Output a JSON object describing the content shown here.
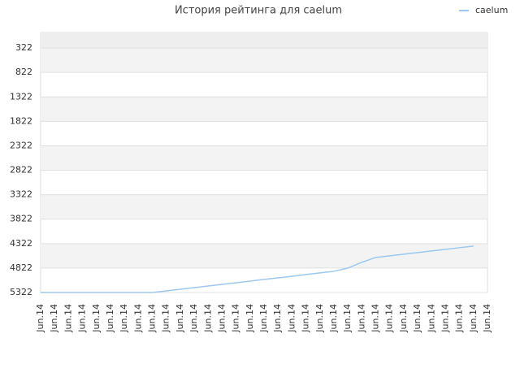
{
  "chart_data": {
    "type": "line",
    "title": "История рейтинга для caelum",
    "categories": [
      "Jun.14",
      "Jun.14",
      "Jun.14",
      "Jun.14",
      "Jun.14",
      "Jun.14",
      "Jun.14",
      "Jun.14",
      "Jun.14",
      "Jun.14",
      "Jun.14",
      "Jun.14",
      "Jun.14",
      "Jun.14",
      "Jun.14",
      "Jun.14",
      "Jun.14",
      "Jun.14",
      "Jun.14",
      "Jun.14",
      "Jun.14",
      "Jun.14",
      "Jun.14",
      "Jun.14",
      "Jun.14",
      "Jun.14",
      "Jun.14",
      "Jun.14",
      "Jun.14",
      "Jun.14",
      "Jun.14",
      "Jun.14",
      "Jun.14"
    ],
    "series": [
      {
        "name": "caelum",
        "color": "#9cc8f0",
        "values": [
          5322,
          5322,
          5322,
          5322,
          5322,
          5322,
          5322,
          5322,
          5322,
          5289,
          5255,
          5222,
          5189,
          5155,
          5122,
          5089,
          5055,
          5022,
          4989,
          4955,
          4922,
          4889,
          4822,
          4705,
          4605,
          4572,
          4539,
          4505,
          4472,
          4439,
          4405,
          4372,
          null
        ]
      }
    ],
    "ylim": [
      5322,
      5
    ],
    "yticks": [
      322,
      822,
      1322,
      1822,
      2322,
      2822,
      3322,
      3822,
      4322,
      4822,
      5322
    ],
    "grid": true,
    "legend": "top-right"
  }
}
